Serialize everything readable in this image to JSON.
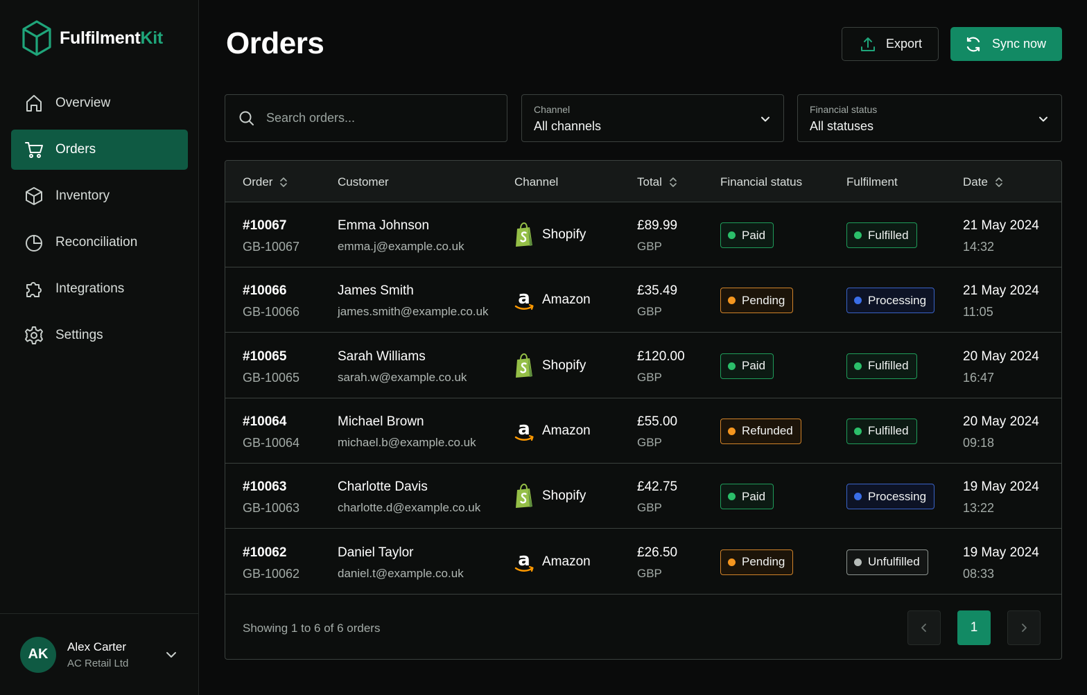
{
  "brand": {
    "name_main": "Fulfilment",
    "name_accent": "Kit",
    "brand_color": "#1fa57a"
  },
  "sidebar": {
    "items": [
      {
        "label": "Overview",
        "icon": "home-icon"
      },
      {
        "label": "Orders",
        "icon": "cart-icon",
        "active": true
      },
      {
        "label": "Inventory",
        "icon": "box-icon"
      },
      {
        "label": "Reconciliation",
        "icon": "pie-chart-icon"
      },
      {
        "label": "Integrations",
        "icon": "puzzle-icon"
      },
      {
        "label": "Settings",
        "icon": "gear-icon"
      }
    ]
  },
  "user": {
    "initials": "AK",
    "name": "Alex Carter",
    "org": "AC Retail Ltd"
  },
  "header": {
    "title": "Orders",
    "export_label": "Export",
    "sync_label": "Sync now"
  },
  "filters": {
    "search_placeholder": "Search orders...",
    "channel": {
      "label": "Channel",
      "value": "All channels"
    },
    "status": {
      "label": "Financial status",
      "value": "All statuses"
    }
  },
  "table": {
    "columns": [
      "Order",
      "Customer",
      "Channel",
      "Total",
      "Financial status",
      "Fulfilment",
      "Date"
    ],
    "rows": [
      {
        "order": "#10067",
        "ref": "GB-10067",
        "name": "Emma Johnson",
        "email": "emma.j@example.co.uk",
        "channel": "Shopify",
        "total": "£89.99",
        "currency": "GBP",
        "financial": "Paid",
        "fin_color": "green",
        "fulfilment": "Fulfilled",
        "ful_color": "green",
        "date": "21 May 2024",
        "time": "14:32"
      },
      {
        "order": "#10066",
        "ref": "GB-10066",
        "name": "James Smith",
        "email": "james.smith@example.co.uk",
        "channel": "Amazon",
        "total": "£35.49",
        "currency": "GBP",
        "financial": "Pending",
        "fin_color": "orange",
        "fulfilment": "Processing",
        "ful_color": "blue",
        "date": "21 May 2024",
        "time": "11:05"
      },
      {
        "order": "#10065",
        "ref": "GB-10065",
        "name": "Sarah Williams",
        "email": "sarah.w@example.co.uk",
        "channel": "Shopify",
        "total": "£120.00",
        "currency": "GBP",
        "financial": "Paid",
        "fin_color": "green",
        "fulfilment": "Fulfilled",
        "ful_color": "green",
        "date": "20 May 2024",
        "time": "16:47"
      },
      {
        "order": "#10064",
        "ref": "GB-10064",
        "name": "Michael Brown",
        "email": "michael.b@example.co.uk",
        "channel": "Amazon",
        "total": "£55.00",
        "currency": "GBP",
        "financial": "Refunded",
        "fin_color": "orange",
        "fulfilment": "Fulfilled",
        "ful_color": "green",
        "date": "20 May 2024",
        "time": "09:18"
      },
      {
        "order": "#10063",
        "ref": "GB-10063",
        "name": "Charlotte Davis",
        "email": "charlotte.d@example.co.uk",
        "channel": "Shopify",
        "total": "£42.75",
        "currency": "GBP",
        "financial": "Paid",
        "fin_color": "green",
        "fulfilment": "Processing",
        "ful_color": "blue",
        "date": "19 May 2024",
        "time": "13:22"
      },
      {
        "order": "#10062",
        "ref": "GB-10062",
        "name": "Daniel Taylor",
        "email": "daniel.t@example.co.uk",
        "channel": "Amazon",
        "total": "£26.50",
        "currency": "GBP",
        "financial": "Pending",
        "fin_color": "orange",
        "fulfilment": "Unfulfilled",
        "ful_color": "gray",
        "date": "19 May 2024",
        "time": "08:33"
      }
    ],
    "footer_text": "Showing 1 to 6 of 6 orders",
    "current_page": "1"
  }
}
